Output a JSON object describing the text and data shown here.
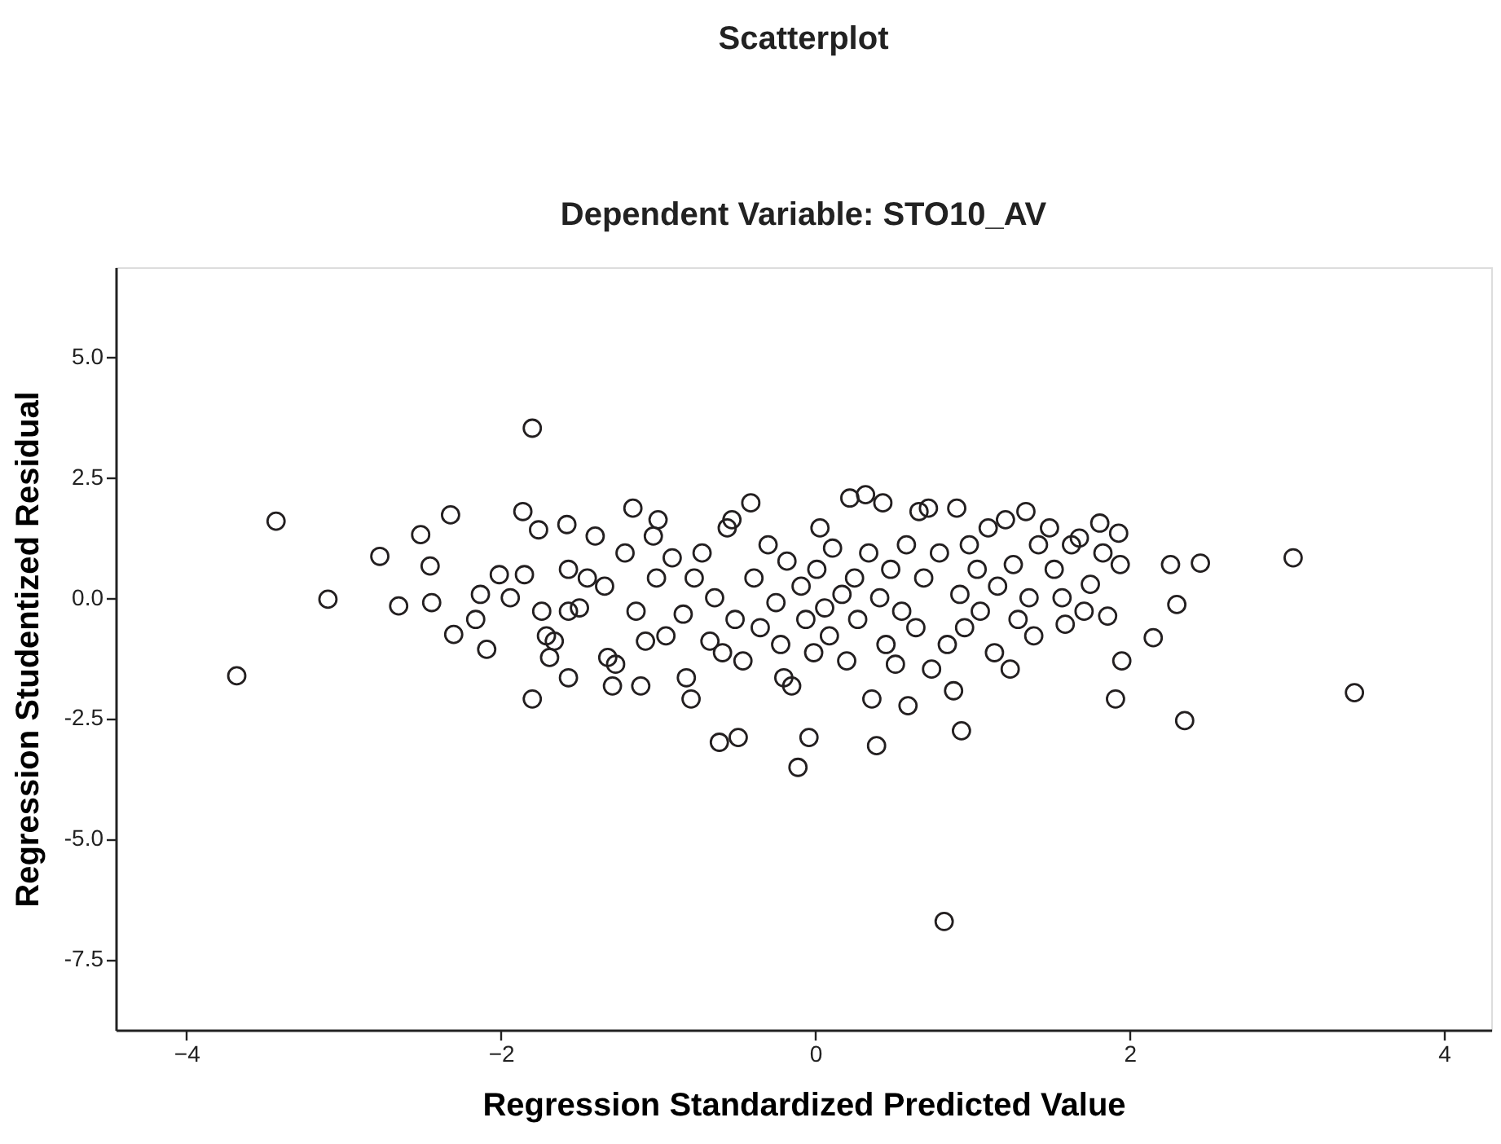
{
  "chart_data": {
    "type": "scatter",
    "title": "Scatterplot",
    "subtitle": "Dependent Variable: STO10_AV",
    "xlabel": "Regression Standardized Predicted Value",
    "ylabel": "Regression Studentized Residual",
    "xlim": [
      -4.45,
      4.3
    ],
    "ylim": [
      -8.97,
      6.86
    ],
    "xticks": [
      -4,
      -2,
      0,
      2,
      4
    ],
    "yticks": [
      {
        "value": 5,
        "label": "5.0"
      },
      {
        "value": 2.5,
        "label": "2.5"
      },
      {
        "value": 0,
        "label": "0.0"
      },
      {
        "value": -2.5,
        "label": "-2.5"
      },
      {
        "value": -5,
        "label": "-5.0"
      },
      {
        "value": -7.5,
        "label": "-7.5"
      }
    ],
    "marker": "circle",
    "series": [
      {
        "color": "#231f20",
        "x": [
          -3.68,
          -3.43,
          -3.1,
          -2.77,
          -2.65,
          -2.51,
          -2.45,
          -2.44,
          -2.32,
          -2.3,
          -2.16,
          -2.13,
          -2.09,
          -2.01,
          -1.94,
          -1.86,
          -1.85,
          -1.8,
          -1.8,
          -1.76,
          -1.74,
          -1.71,
          -1.69,
          -1.66,
          -1.57,
          -1.57,
          -1.57,
          -1.58,
          -1.5,
          -1.45,
          -1.4,
          -1.34,
          -1.32,
          -1.29,
          -1.27,
          -1.21,
          -1.16,
          -1.14,
          -1.11,
          -1.08,
          -1.03,
          -1.01,
          -1.0,
          -0.95,
          -0.91,
          -0.84,
          -0.82,
          -0.79,
          -0.77,
          -0.72,
          -0.67,
          -0.64,
          -0.61,
          -0.59,
          -0.56,
          -0.53,
          -0.51,
          -0.49,
          -0.46,
          -0.41,
          -0.39,
          -0.35,
          -0.3,
          -0.25,
          -0.22,
          -0.2,
          -0.18,
          -0.15,
          -0.11,
          -0.09,
          -0.06,
          -0.04,
          -0.01,
          0.01,
          0.03,
          0.06,
          0.09,
          0.11,
          0.17,
          0.2,
          0.22,
          0.25,
          0.27,
          0.32,
          0.34,
          0.36,
          0.39,
          0.41,
          0.43,
          0.45,
          0.48,
          0.51,
          0.55,
          0.58,
          0.59,
          0.64,
          0.66,
          0.69,
          0.72,
          0.74,
          0.79,
          0.82,
          0.84,
          0.88,
          0.9,
          0.92,
          0.93,
          0.95,
          0.98,
          1.03,
          1.05,
          1.1,
          1.14,
          1.16,
          1.21,
          1.24,
          1.26,
          1.29,
          1.34,
          1.36,
          1.39,
          1.42,
          1.49,
          1.52,
          1.57,
          1.59,
          1.63,
          1.68,
          1.71,
          1.75,
          1.81,
          1.83,
          1.86,
          1.91,
          1.93,
          1.94,
          1.95,
          2.15,
          2.26,
          2.3,
          2.35,
          2.45,
          3.04,
          3.43
        ],
        "values": [
          -1.62,
          1.59,
          -0.03,
          0.86,
          -0.17,
          1.31,
          0.66,
          -0.1,
          1.72,
          -0.76,
          -0.45,
          0.07,
          -1.07,
          0.48,
          0.0,
          1.79,
          0.48,
          3.52,
          -2.1,
          1.41,
          -0.28,
          -0.79,
          -1.24,
          -0.9,
          0.59,
          -0.28,
          -1.66,
          1.52,
          -0.21,
          0.41,
          1.28,
          0.24,
          -1.24,
          -1.83,
          -1.38,
          0.93,
          1.86,
          -0.28,
          -1.83,
          -0.9,
          1.28,
          0.41,
          1.62,
          -0.79,
          0.83,
          -0.34,
          -1.66,
          -2.1,
          0.41,
          0.93,
          -0.9,
          0.0,
          -3.0,
          -1.14,
          1.45,
          1.62,
          -0.45,
          -2.9,
          -1.31,
          1.97,
          0.41,
          -0.62,
          1.1,
          -0.1,
          -0.97,
          -1.66,
          0.76,
          -1.83,
          -3.52,
          0.24,
          -0.45,
          -2.9,
          -1.14,
          0.59,
          1.45,
          -0.21,
          -0.79,
          1.03,
          0.07,
          -1.31,
          2.07,
          0.41,
          -0.45,
          2.14,
          0.93,
          -2.1,
          -3.07,
          0.0,
          1.97,
          -0.97,
          0.59,
          -1.38,
          -0.28,
          1.1,
          -2.24,
          -0.62,
          1.79,
          0.41,
          1.86,
          -1.48,
          0.93,
          -6.72,
          -0.97,
          -1.93,
          1.86,
          0.07,
          -2.76,
          -0.62,
          1.1,
          0.59,
          -0.28,
          1.45,
          -1.14,
          0.24,
          1.62,
          -1.48,
          0.69,
          -0.45,
          1.79,
          0.0,
          -0.79,
          1.1,
          1.45,
          0.59,
          0.0,
          -0.55,
          1.1,
          1.24,
          -0.28,
          0.28,
          1.55,
          0.93,
          -0.38,
          -2.1,
          1.34,
          0.69,
          -1.31,
          -0.83,
          0.69,
          -0.14,
          -2.55,
          0.72,
          0.83,
          -1.97
        ]
      }
    ]
  }
}
